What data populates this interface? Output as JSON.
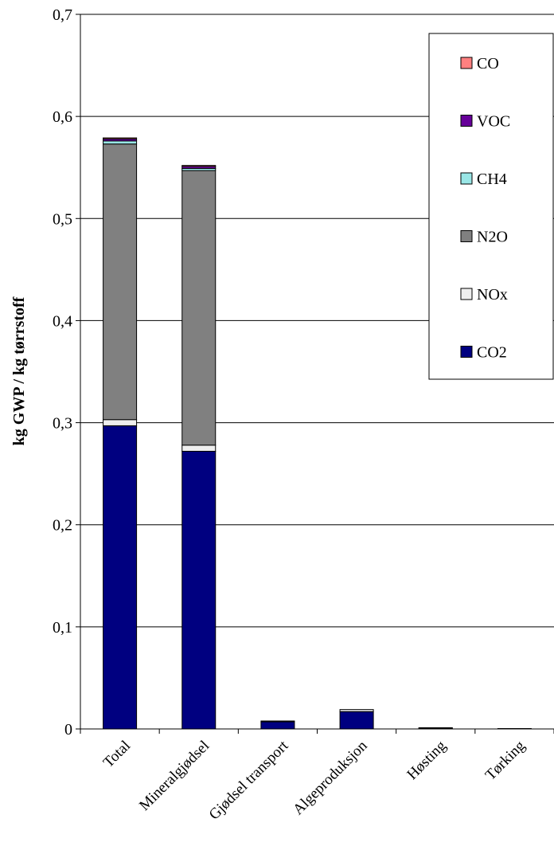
{
  "chart_data": {
    "type": "bar",
    "stacked": true,
    "title": "",
    "xlabel": "",
    "ylabel": "kg GWP / kg tørrstoff",
    "ylim": [
      0,
      0.7
    ],
    "yticks": [
      "0",
      "0,1",
      "0,2",
      "0,3",
      "0,4",
      "0,5",
      "0,6",
      "0,7"
    ],
    "grid": true,
    "legend_position": "top-right",
    "categories": [
      "Total",
      "Mineralgjødsel",
      "Gjødsel transport",
      "Algeproduksjon",
      "Høsting",
      "Tørking"
    ],
    "series": [
      {
        "name": "CO2",
        "color": "#000080",
        "values": [
          0.297,
          0.272,
          0.007,
          0.017,
          0.001,
          0.0004
        ]
      },
      {
        "name": "NOx",
        "color": "#eeeeee",
        "values": [
          0.006,
          0.006,
          0.0008,
          0.002,
          0.0002,
          0.0
        ]
      },
      {
        "name": "N2O",
        "color": "#808080",
        "values": [
          0.27,
          0.269,
          0.0,
          0.0,
          0.0,
          0.0
        ]
      },
      {
        "name": "CH4",
        "color": "#99e6e6",
        "values": [
          0.003,
          0.002,
          0.0,
          0.0,
          0.0,
          0.0
        ]
      },
      {
        "name": "VOC",
        "color": "#660099",
        "values": [
          0.002,
          0.002,
          0.0,
          0.0,
          0.0,
          0.0
        ]
      },
      {
        "name": "CO",
        "color": "#ff8080",
        "values": [
          0.001,
          0.001,
          0.0,
          0.0,
          0.0,
          0.0
        ]
      }
    ]
  }
}
